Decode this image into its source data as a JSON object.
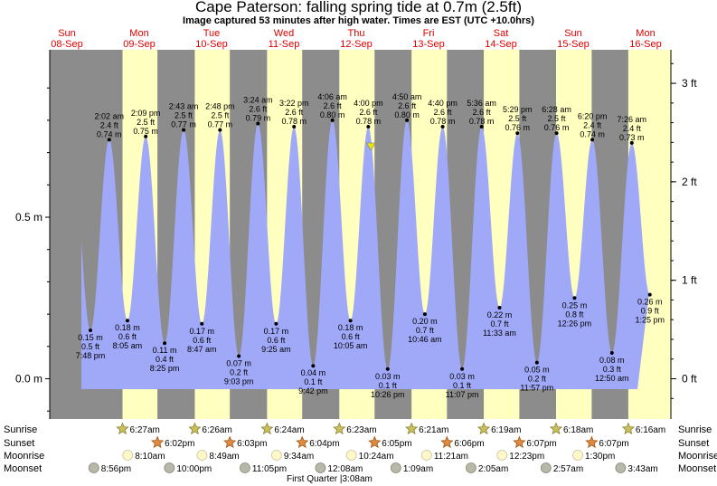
{
  "header": {
    "title": "Cape Paterson: falling  spring tide at 0.7m (2.5ft)",
    "subtitle": "Image captured 53 minutes after high water. Times are EST (UTC +10.0hrs)"
  },
  "chart_data": {
    "type": "area",
    "title": "Cape Paterson: falling  spring tide at 0.7m (2.5ft)",
    "y_left_unit": "m",
    "y_right_unit": "ft",
    "y_left_ticks": [
      "0.0 m",
      "0.5 m"
    ],
    "y_right_ticks": [
      "0 ft",
      "1 ft",
      "2 ft",
      "3 ft"
    ],
    "ylim_m": [
      -0.12,
      1.0
    ],
    "days": [
      {
        "dow": "Sun",
        "date": "08-Sep"
      },
      {
        "dow": "Mon",
        "date": "09-Sep"
      },
      {
        "dow": "Tue",
        "date": "10-Sep"
      },
      {
        "dow": "Wed",
        "date": "11-Sep"
      },
      {
        "dow": "Thu",
        "date": "12-Sep"
      },
      {
        "dow": "Fri",
        "date": "13-Sep"
      },
      {
        "dow": "Sat",
        "date": "14-Sep"
      },
      {
        "dow": "Sun",
        "date": "15-Sep"
      },
      {
        "dow": "Mon",
        "date": "16-Sep"
      }
    ],
    "tides": [
      {
        "day": 0,
        "time": "7:48 pm",
        "hour": 19.8,
        "m": "0.15 m",
        "ft": "0.5 ft",
        "type": "low",
        "value": 0.15
      },
      {
        "day": 1,
        "time": "2:02 am",
        "hour": 2.03,
        "m": "0.74 m",
        "ft": "2.4 ft",
        "type": "high",
        "value": 0.74
      },
      {
        "day": 1,
        "time": "8:05 am",
        "hour": 8.08,
        "m": "0.18 m",
        "ft": "0.6 ft",
        "type": "low",
        "value": 0.18
      },
      {
        "day": 1,
        "time": "2:09 pm",
        "hour": 14.15,
        "m": "0.75 m",
        "ft": "2.5 ft",
        "type": "high",
        "value": 0.75
      },
      {
        "day": 1,
        "time": "8:25 pm",
        "hour": 20.42,
        "m": "0.11 m",
        "ft": "0.4 ft",
        "type": "low",
        "value": 0.11
      },
      {
        "day": 2,
        "time": "2:43 am",
        "hour": 2.72,
        "m": "0.77 m",
        "ft": "2.5 ft",
        "type": "high",
        "value": 0.77
      },
      {
        "day": 2,
        "time": "8:47 am",
        "hour": 8.78,
        "m": "0.17 m",
        "ft": "0.6 ft",
        "type": "low",
        "value": 0.17
      },
      {
        "day": 2,
        "time": "2:48 pm",
        "hour": 14.8,
        "m": "0.77 m",
        "ft": "2.5 ft",
        "type": "high",
        "value": 0.77
      },
      {
        "day": 2,
        "time": "9:03 pm",
        "hour": 21.05,
        "m": "0.07 m",
        "ft": "0.2 ft",
        "type": "low",
        "value": 0.07
      },
      {
        "day": 3,
        "time": "3:24 am",
        "hour": 3.4,
        "m": "0.79 m",
        "ft": "2.6 ft",
        "type": "high",
        "value": 0.79
      },
      {
        "day": 3,
        "time": "9:25 am",
        "hour": 9.42,
        "m": "0.17 m",
        "ft": "0.6 ft",
        "type": "low",
        "value": 0.17
      },
      {
        "day": 3,
        "time": "3:22 pm",
        "hour": 15.37,
        "m": "0.78 m",
        "ft": "2.6 ft",
        "type": "high",
        "value": 0.78
      },
      {
        "day": 3,
        "time": "9:42 pm",
        "hour": 21.7,
        "m": "0.04 m",
        "ft": "0.1 ft",
        "type": "low",
        "value": 0.04
      },
      {
        "day": 4,
        "time": "4:06 am",
        "hour": 4.1,
        "m": "0.80 m",
        "ft": "2.6 ft",
        "type": "high",
        "value": 0.8
      },
      {
        "day": 4,
        "time": "10:05 am",
        "hour": 10.08,
        "m": "0.18 m",
        "ft": "0.6 ft",
        "type": "low",
        "value": 0.18
      },
      {
        "day": 4,
        "time": "4:00 pm",
        "hour": 16.0,
        "m": "0.78 m",
        "ft": "2.6 ft",
        "type": "high",
        "value": 0.78
      },
      {
        "day": 4,
        "time": "10:26 pm",
        "hour": 22.43,
        "m": "0.03 m",
        "ft": "0.1 ft",
        "type": "low",
        "value": 0.03
      },
      {
        "day": 5,
        "time": "4:50 am",
        "hour": 4.83,
        "m": "0.80 m",
        "ft": "2.6 ft",
        "type": "high",
        "value": 0.8
      },
      {
        "day": 5,
        "time": "10:46 am",
        "hour": 10.77,
        "m": "0.20 m",
        "ft": "0.7 ft",
        "type": "low",
        "value": 0.2
      },
      {
        "day": 5,
        "time": "4:40 pm",
        "hour": 16.67,
        "m": "0.78 m",
        "ft": "2.6 ft",
        "type": "high",
        "value": 0.78
      },
      {
        "day": 5,
        "time": "11:07 pm",
        "hour": 23.12,
        "m": "0.03 m",
        "ft": "0.1 ft",
        "type": "low",
        "value": 0.03
      },
      {
        "day": 6,
        "time": "5:36 am",
        "hour": 5.6,
        "m": "0.78 m",
        "ft": "2.6 ft",
        "type": "high",
        "value": 0.78
      },
      {
        "day": 6,
        "time": "11:33 am",
        "hour": 11.55,
        "m": "0.22 m",
        "ft": "0.7 ft",
        "type": "low",
        "value": 0.22
      },
      {
        "day": 6,
        "time": "5:29 pm",
        "hour": 17.48,
        "m": "0.76 m",
        "ft": "2.5 ft",
        "type": "high",
        "value": 0.76
      },
      {
        "day": 6,
        "time": "11:57 pm",
        "hour": 23.95,
        "m": "0.05 m",
        "ft": "0.2 ft",
        "type": "low",
        "value": 0.05
      },
      {
        "day": 7,
        "time": "6:28 am",
        "hour": 6.47,
        "m": "0.76 m",
        "ft": "2.5 ft",
        "type": "high",
        "value": 0.76
      },
      {
        "day": 7,
        "time": "12:26 pm",
        "hour": 12.43,
        "m": "0.25 m",
        "ft": "0.8 ft",
        "type": "low",
        "value": 0.25
      },
      {
        "day": 7,
        "time": "6:20 pm",
        "hour": 18.33,
        "m": "0.74 m",
        "ft": "2.4 ft",
        "type": "high",
        "value": 0.74
      },
      {
        "day": 8,
        "time": "12:50 am",
        "hour": 0.83,
        "m": "0.08 m",
        "ft": "0.3 ft",
        "type": "low",
        "value": 0.08
      },
      {
        "day": 8,
        "time": "7:26 am",
        "hour": 7.43,
        "m": "0.73 m",
        "ft": "2.4 ft",
        "type": "high",
        "value": 0.73
      },
      {
        "day": 8,
        "time": "1:25 pm",
        "hour": 13.42,
        "m": "0.26 m",
        "ft": "0.9 ft",
        "type": "low",
        "value": 0.26
      }
    ],
    "now_marker": {
      "day": 4,
      "hour": 16.88
    },
    "sunrise": [
      {
        "day": 1,
        "text": "6:27am",
        "hour": 6.45
      },
      {
        "day": 2,
        "text": "6:26am",
        "hour": 6.43
      },
      {
        "day": 3,
        "text": "6:24am",
        "hour": 6.4
      },
      {
        "day": 4,
        "text": "6:23am",
        "hour": 6.38
      },
      {
        "day": 5,
        "text": "6:21am",
        "hour": 6.35
      },
      {
        "day": 6,
        "text": "6:19am",
        "hour": 6.32
      },
      {
        "day": 7,
        "text": "6:18am",
        "hour": 6.3
      },
      {
        "day": 8,
        "text": "6:16am",
        "hour": 6.27
      }
    ],
    "sunset": [
      {
        "day": 1,
        "text": "6:02pm",
        "hour": 18.03
      },
      {
        "day": 2,
        "text": "6:03pm",
        "hour": 18.05
      },
      {
        "day": 3,
        "text": "6:04pm",
        "hour": 18.07
      },
      {
        "day": 4,
        "text": "6:05pm",
        "hour": 18.08
      },
      {
        "day": 5,
        "text": "6:06pm",
        "hour": 18.1
      },
      {
        "day": 6,
        "text": "6:07pm",
        "hour": 18.12
      },
      {
        "day": 7,
        "text": "6:07pm",
        "hour": 18.12
      }
    ],
    "moonrise": [
      {
        "day": 1,
        "text": "8:10am",
        "hour": 8.17
      },
      {
        "day": 2,
        "text": "8:49am",
        "hour": 8.82
      },
      {
        "day": 3,
        "text": "9:34am",
        "hour": 9.57
      },
      {
        "day": 4,
        "text": "10:24am",
        "hour": 10.4
      },
      {
        "day": 5,
        "text": "11:21am",
        "hour": 11.35
      },
      {
        "day": 6,
        "text": "12:23pm",
        "hour": 12.38
      },
      {
        "day": 7,
        "text": "1:30pm",
        "hour": 13.5
      }
    ],
    "moonset": [
      {
        "day": 0,
        "text": "8:56pm",
        "hour": 20.93
      },
      {
        "day": 1,
        "text": "10:00pm",
        "hour": 22.0
      },
      {
        "day": 2,
        "text": "11:05pm",
        "hour": 23.08
      },
      {
        "day": 4,
        "text": "12:08am",
        "hour": 0.13
      },
      {
        "day": 5,
        "text": "1:09am",
        "hour": 1.15
      },
      {
        "day": 6,
        "text": "2:05am",
        "hour": 2.08
      },
      {
        "day": 7,
        "text": "2:57am",
        "hour": 2.95
      },
      {
        "day": 8,
        "text": "3:43am",
        "hour": 3.72
      }
    ],
    "moon_phase": {
      "day": 4,
      "hour": 3.13,
      "text": "First Quarter |3:08am"
    },
    "row_labels": {
      "sunrise": "Sunrise",
      "sunset": "Sunset",
      "moonrise": "Moonrise",
      "moonset": "Moonset"
    },
    "colors": {
      "night": "#8c8c8c",
      "day": "#ffffc0",
      "water": "#a0a8f8",
      "dates": "#e00000",
      "now": "#e8e800"
    }
  }
}
